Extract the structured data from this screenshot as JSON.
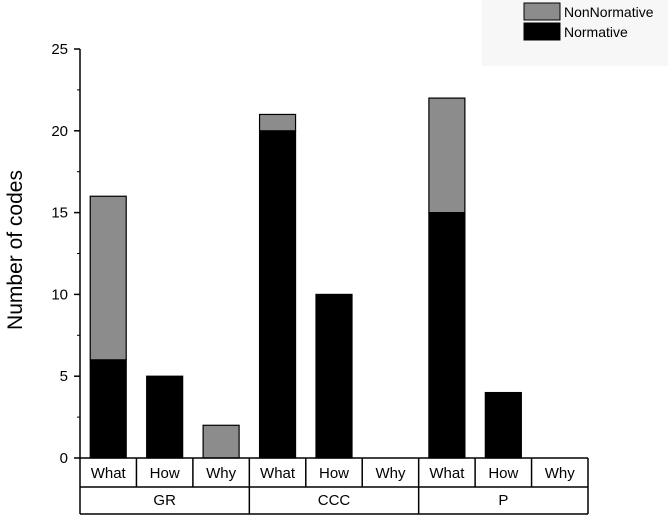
{
  "chart_data": {
    "type": "bar",
    "stacked": true,
    "groups": [
      {
        "label": "GR",
        "categories": [
          "What",
          "How",
          "Why"
        ]
      },
      {
        "label": "CCC",
        "categories": [
          "What",
          "How",
          "Why"
        ]
      },
      {
        "label": "P",
        "categories": [
          "What",
          "How",
          "Why"
        ]
      }
    ],
    "series": [
      {
        "name": "Normative",
        "color": "#000000",
        "values": [
          6,
          5,
          0,
          20,
          10,
          0,
          15,
          4,
          0
        ]
      },
      {
        "name": "NonNormative",
        "color": "#8c8c8c",
        "values": [
          10,
          0,
          2,
          1,
          0,
          0,
          7,
          0,
          0
        ]
      }
    ],
    "legend_order": [
      "NonNormative",
      "Normative"
    ],
    "title": "",
    "xlabel": "",
    "ylabel": "Number of codes",
    "ylim": [
      0,
      25
    ],
    "yticks": [
      0,
      5,
      10,
      15,
      20,
      25
    ],
    "grid": false,
    "legend_position": "top-right"
  }
}
